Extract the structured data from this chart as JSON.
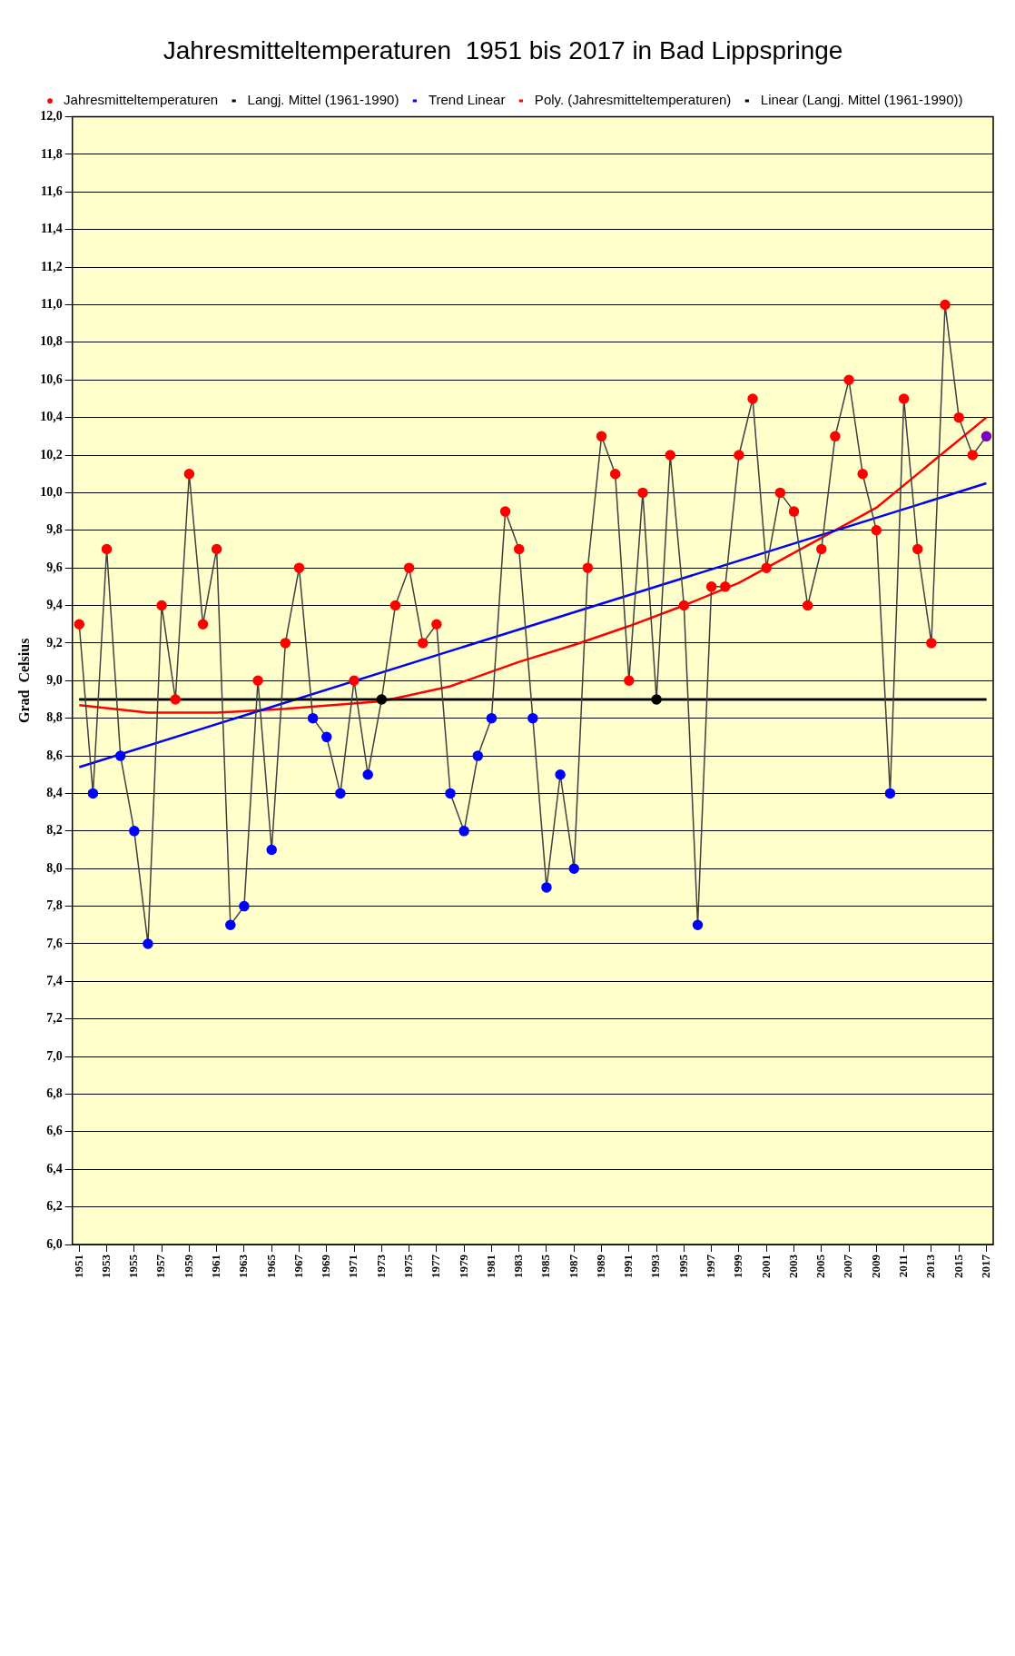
{
  "chart_data": {
    "type": "line",
    "title": "Jahresmitteltemperaturen  1951 bis 2017 in Bad Lippspringe",
    "ylabel": "Grad  Celsius",
    "x": [
      1951,
      1952,
      1953,
      1954,
      1955,
      1956,
      1957,
      1958,
      1959,
      1960,
      1961,
      1962,
      1963,
      1964,
      1965,
      1966,
      1967,
      1968,
      1969,
      1970,
      1971,
      1972,
      1973,
      1974,
      1975,
      1976,
      1977,
      1978,
      1979,
      1980,
      1981,
      1982,
      1983,
      1984,
      1985,
      1986,
      1987,
      1988,
      1989,
      1990,
      1991,
      1992,
      1993,
      1994,
      1995,
      1996,
      1997,
      1998,
      1999,
      2000,
      2001,
      2002,
      2003,
      2004,
      2005,
      2006,
      2007,
      2008,
      2009,
      2010,
      2011,
      2012,
      2013,
      2014,
      2015,
      2016,
      2017
    ],
    "series": [
      {
        "name": "Jahresmitteltemperaturen",
        "color": "#404040",
        "values": [
          9.3,
          8.4,
          9.7,
          8.6,
          8.2,
          7.6,
          9.4,
          8.9,
          10.1,
          9.3,
          9.7,
          7.7,
          7.8,
          9.0,
          8.1,
          9.2,
          9.6,
          8.8,
          8.7,
          8.4,
          9.0,
          8.5,
          8.9,
          9.4,
          9.6,
          9.2,
          9.3,
          8.4,
          8.2,
          8.6,
          8.8,
          9.9,
          9.7,
          8.8,
          7.9,
          8.5,
          8.0,
          9.6,
          10.3,
          10.1,
          9.0,
          10.0,
          8.9,
          10.2,
          9.4,
          7.7,
          9.5,
          9.5,
          10.2,
          10.5,
          9.6,
          10.0,
          9.9,
          9.4,
          9.7,
          10.3,
          10.6,
          10.1,
          9.8,
          8.4,
          10.5,
          9.7,
          9.2,
          11.0,
          10.4,
          10.2,
          10.3
        ],
        "colors": [
          "#ff0000",
          "#0000ff",
          "#ff0000",
          "#0000ff",
          "#0000ff",
          "#0000ff",
          "#ff0000",
          "#ff0000",
          "#ff0000",
          "#ff0000",
          "#ff0000",
          "#0000ff",
          "#0000ff",
          "#ff0000",
          "#0000ff",
          "#ff0000",
          "#ff0000",
          "#0000ff",
          "#0000ff",
          "#0000ff",
          "#ff0000",
          "#0000ff",
          "#000000",
          "#ff0000",
          "#ff0000",
          "#ff0000",
          "#ff0000",
          "#0000ff",
          "#0000ff",
          "#0000ff",
          "#0000ff",
          "#ff0000",
          "#ff0000",
          "#0000ff",
          "#0000ff",
          "#0000ff",
          "#0000ff",
          "#ff0000",
          "#ff0000",
          "#ff0000",
          "#ff0000",
          "#ff0000",
          "#000000",
          "#ff0000",
          "#ff0000",
          "#0000ff",
          "#ff0000",
          "#ff0000",
          "#ff0000",
          "#ff0000",
          "#ff0000",
          "#ff0000",
          "#ff0000",
          "#ff0000",
          "#ff0000",
          "#ff0000",
          "#ff0000",
          "#ff0000",
          "#ff0000",
          "#0000ff",
          "#ff0000",
          "#ff0000",
          "#ff0000",
          "#ff0000",
          "#ff0000",
          "#ff0000",
          "#8000c0"
        ]
      },
      {
        "name": "Langj. Mittel (1961-1990)",
        "type": "line",
        "marker": "none",
        "color": "#000000",
        "x": [
          1951,
          2017
        ],
        "values": [
          8.9,
          8.9
        ]
      },
      {
        "name": "Trend Linear",
        "type": "line",
        "marker": "none",
        "color": "#0000ff",
        "x": [
          1951,
          2017
        ],
        "values": [
          8.54,
          10.05
        ]
      },
      {
        "name": "Poly. (Jahresmitteltemperaturen)",
        "type": "line",
        "marker": "none",
        "color": "#ff0000",
        "x": [
          1951,
          1956,
          1961,
          1966,
          1973,
          1978,
          1983,
          1987,
          1991,
          1995,
          1999,
          2001,
          2005,
          2009,
          2013,
          2017
        ],
        "values": [
          8.87,
          8.83,
          8.83,
          8.85,
          8.89,
          8.97,
          9.1,
          9.19,
          9.29,
          9.4,
          9.52,
          9.6,
          9.76,
          9.92,
          10.16,
          10.4
        ]
      },
      {
        "name": "Linear (Langj. Mittel (1961-1990))",
        "type": "line",
        "marker": "none",
        "color": "#000000",
        "x": [
          1951,
          2017
        ],
        "values": [
          8.9,
          8.9
        ]
      }
    ],
    "xlim": [
      1950.5,
      2017.5
    ],
    "xticks": [
      1951,
      1953,
      1955,
      1957,
      1959,
      1961,
      1963,
      1965,
      1967,
      1969,
      1971,
      1973,
      1975,
      1977,
      1979,
      1981,
      1983,
      1985,
      1987,
      1989,
      1991,
      1993,
      1995,
      1997,
      1999,
      2001,
      2003,
      2005,
      2007,
      2009,
      2011,
      2013,
      2015,
      2017
    ],
    "ylim": [
      6,
      12
    ],
    "yticks": [
      {
        "value": 6,
        "label": "6,0"
      },
      {
        "value": 6.2,
        "label": "6,2"
      },
      {
        "value": 6.4,
        "label": "6,4"
      },
      {
        "value": 6.6,
        "label": "6,6"
      },
      {
        "value": 6.8,
        "label": "6,8"
      },
      {
        "value": 7,
        "label": "7,0"
      },
      {
        "value": 7.2,
        "label": "7,2"
      },
      {
        "value": 7.4,
        "label": "7,4"
      },
      {
        "value": 7.6,
        "label": "7,6"
      },
      {
        "value": 7.8,
        "label": "7,8"
      },
      {
        "value": 8,
        "label": "8,0"
      },
      {
        "value": 8.2,
        "label": "8,2"
      },
      {
        "value": 8.4,
        "label": "8,4"
      },
      {
        "value": 8.6,
        "label": "8,6"
      },
      {
        "value": 8.8,
        "label": "8,8"
      },
      {
        "value": 9,
        "label": "9,0"
      },
      {
        "value": 9.2,
        "label": "9,2"
      },
      {
        "value": 9.4,
        "label": "9,4"
      },
      {
        "value": 9.6,
        "label": "9,6"
      },
      {
        "value": 9.8,
        "label": "9,8"
      },
      {
        "value": 10,
        "label": "10,0"
      },
      {
        "value": 10.2,
        "label": "10,2"
      },
      {
        "value": 10.4,
        "label": "10,4"
      },
      {
        "value": 10.6,
        "label": "10,6"
      },
      {
        "value": 10.8,
        "label": "10,8"
      },
      {
        "value": 11,
        "label": "11,0"
      },
      {
        "value": 11.2,
        "label": "11,2"
      },
      {
        "value": 11.4,
        "label": "11,4"
      },
      {
        "value": 11.6,
        "label": "11,6"
      },
      {
        "value": 11.8,
        "label": "11,8"
      },
      {
        "value": 12,
        "label": "12,0"
      }
    ],
    "grid": "y",
    "legend": "top",
    "marker": "circle",
    "line_style": "solid"
  }
}
